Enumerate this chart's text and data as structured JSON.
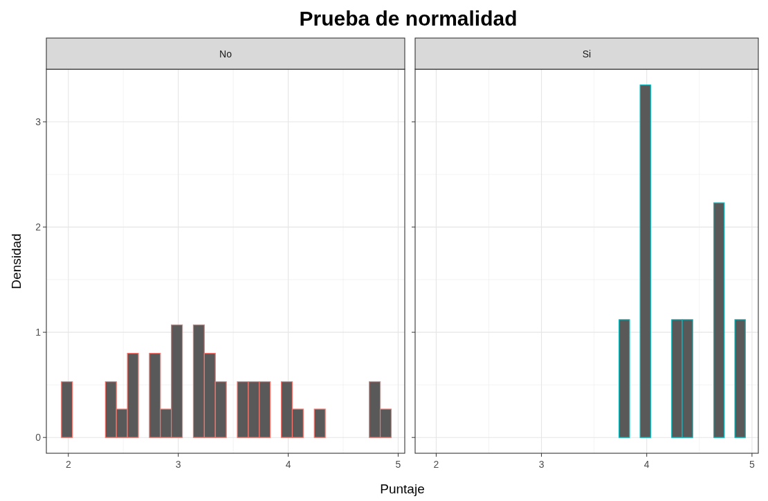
{
  "chart_data": [
    {
      "type": "histogram",
      "title": "Prueba de normalidad",
      "subtitle": "No",
      "xlabel": "Puntaje",
      "ylabel": "Densidad",
      "bins": [
        1.937,
        2.037,
        2.137,
        2.237,
        2.337,
        2.437,
        2.537,
        2.637,
        2.737,
        2.837,
        2.937,
        3.037,
        3.137,
        3.237,
        3.337,
        3.437,
        3.537,
        3.637,
        3.737,
        3.837,
        3.937,
        4.037,
        4.137,
        4.237,
        4.337,
        4.437,
        4.537,
        4.637,
        4.737,
        4.837,
        4.937
      ],
      "series": [
        {
          "color": "#595959",
          "values": [
            0.53,
            0,
            0,
            0,
            0.53,
            0.27,
            0.8,
            0,
            0.8,
            0.27,
            1.07,
            0,
            1.07,
            0.8,
            0.53,
            0,
            0.53,
            0.53,
            0.53,
            0,
            0.53,
            0.27,
            0,
            0.27,
            0,
            0,
            0,
            0,
            0.53,
            0.27
          ]
        }
      ],
      "xlim": [
        1.8,
        5.06
      ],
      "xticks": [
        2,
        3,
        4,
        5
      ],
      "ylim": [
        -0.15,
        3.5
      ],
      "yticks": [
        0,
        1,
        2,
        3
      ],
      "grid": true
    },
    {
      "type": "histogram",
      "subtitle": "Si",
      "bins": [
        1.937,
        2.037,
        2.137,
        2.237,
        2.337,
        2.437,
        2.537,
        2.637,
        2.737,
        2.837,
        2.937,
        3.037,
        3.137,
        3.237,
        3.337,
        3.437,
        3.537,
        3.637,
        3.737,
        3.837,
        3.937,
        4.037,
        4.137,
        4.237,
        4.337,
        4.437,
        4.537,
        4.637,
        4.737,
        4.837,
        4.937
      ],
      "series": [
        {
          "color": "#595959",
          "values": [
            0,
            0,
            0,
            0,
            0,
            0,
            0,
            0,
            0,
            0,
            0,
            0,
            0,
            0,
            0,
            0,
            0,
            0,
            1.12,
            0,
            3.35,
            0,
            0,
            1.12,
            1.12,
            0,
            0,
            2.23,
            0,
            1.12
          ]
        }
      ],
      "xlim": [
        1.8,
        5.06
      ],
      "xticks": [
        2,
        3,
        4,
        5
      ],
      "ylim": [
        -0.15,
        3.5
      ],
      "yticks": [
        0,
        1,
        2,
        3
      ],
      "grid": true,
      "tick_labels": "x"
    }
  ]
}
